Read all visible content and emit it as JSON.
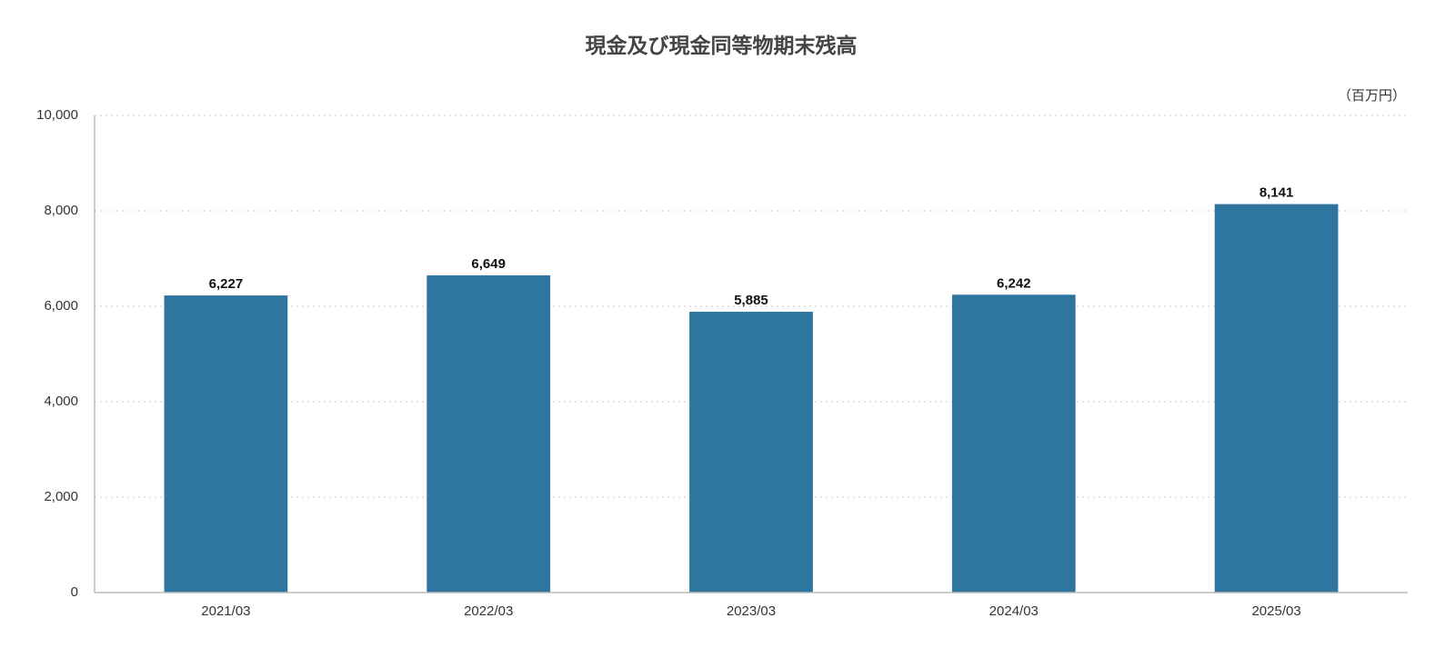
{
  "chart_data": {
    "type": "bar",
    "title": "現金及び現金同等物期末残高",
    "unit_label": "（百万円）",
    "categories": [
      "2021/03",
      "2022/03",
      "2023/03",
      "2024/03",
      "2025/03"
    ],
    "values": [
      6227,
      6649,
      5885,
      6242,
      8141
    ],
    "value_labels": [
      "6,227",
      "6,649",
      "5,885",
      "6,242",
      "8,141"
    ],
    "color": "#2e769f",
    "ylim": [
      0,
      10000
    ],
    "yticks": [
      0,
      {
        "value": 2000,
        "label": "2,000"
      },
      {
        "value": 4000,
        "label": "4,000"
      },
      {
        "value": 6000,
        "label": "6,000"
      },
      {
        "value": 8000,
        "label": "8,000"
      },
      {
        "value": 10000,
        "label": "10,000"
      }
    ],
    "grid": true
  }
}
